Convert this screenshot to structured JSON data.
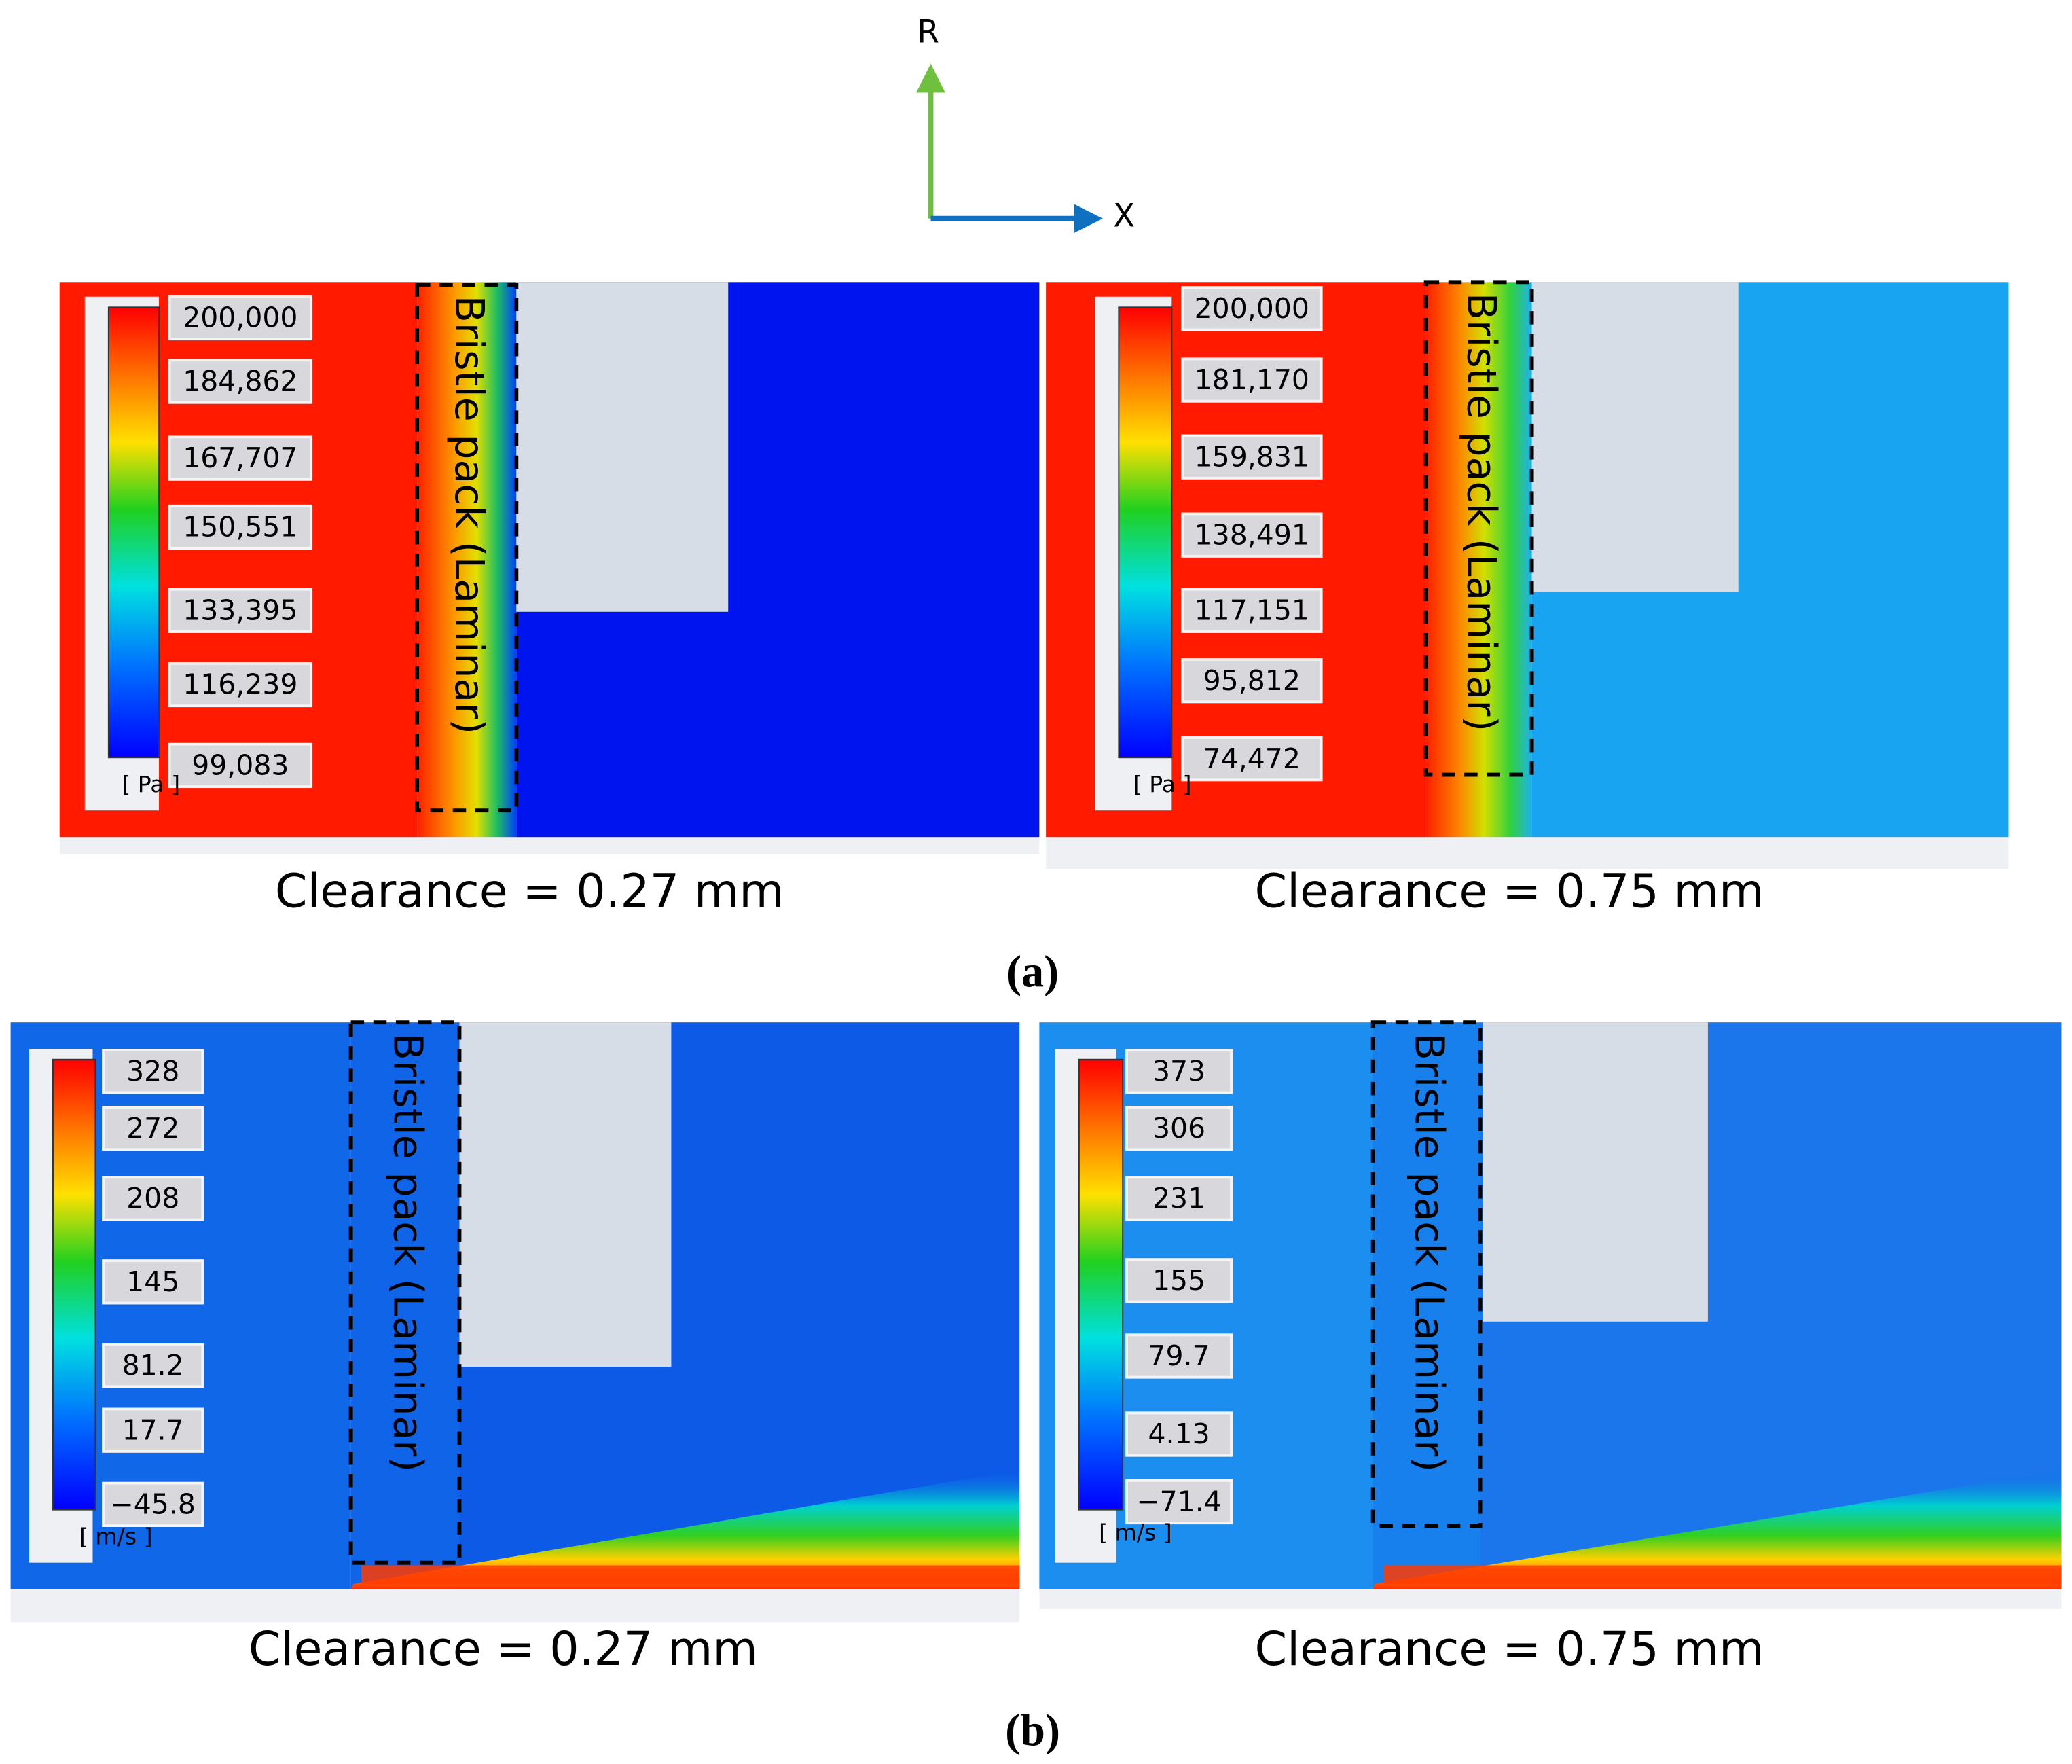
{
  "axes": {
    "r": "R",
    "x": "X"
  },
  "panels": [
    {
      "label": "(a)",
      "plots": [
        {
          "legend": {
            "values": [
              "200,000",
              "184,862",
              "167,707",
              "150,551",
              "133,395",
              "116,239",
              "99,083"
            ],
            "unit": "[ Pa ]"
          },
          "annotation": "Bristle pack (Laminar)",
          "caption": "Clearance = 0.27 mm"
        },
        {
          "legend": {
            "values": [
              "200,000",
              "181,170",
              "159,831",
              "138,491",
              "117,151",
              "95,812",
              "74,472"
            ],
            "unit": "[ Pa ]"
          },
          "annotation": "Bristle pack (Laminar)",
          "caption": "Clearance = 0.75 mm"
        }
      ]
    },
    {
      "label": "(b)",
      "plots": [
        {
          "legend": {
            "values": [
              "328",
              "272",
              "208",
              "145",
              "81.2",
              "17.7",
              "−45.8"
            ],
            "unit": "[ m/s ]"
          },
          "annotation": "Bristle pack (Laminar)",
          "caption": "Clearance = 0.27 mm"
        },
        {
          "legend": {
            "values": [
              "373",
              "306",
              "231",
              "155",
              "79.7",
              "4.13",
              "−71.4"
            ],
            "unit": "[ m/s ]"
          },
          "annotation": "Bristle pack (Laminar)",
          "caption": "Clearance = 0.75 mm"
        }
      ]
    }
  ]
}
